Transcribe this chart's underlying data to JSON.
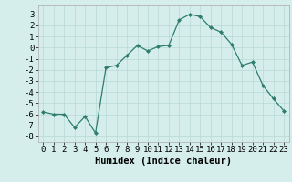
{
  "xlabel": "Humidex (Indice chaleur)",
  "ylabel": "",
  "x": [
    0,
    1,
    2,
    3,
    4,
    5,
    6,
    7,
    8,
    9,
    10,
    11,
    12,
    13,
    14,
    15,
    16,
    17,
    18,
    19,
    20,
    21,
    22,
    23
  ],
  "y": [
    -5.8,
    -6.0,
    -6.0,
    -7.2,
    -6.2,
    -7.7,
    -1.8,
    -1.6,
    -0.7,
    0.2,
    -0.3,
    0.1,
    0.2,
    2.5,
    3.0,
    2.8,
    1.8,
    1.4,
    0.3,
    -1.6,
    -1.3,
    -3.4,
    -4.6,
    -5.7
  ],
  "line_color": "#2e7d6e",
  "marker": "D",
  "marker_size": 2.0,
  "bg_color": "#d5eeeb",
  "grid_color": "#b8d8d4",
  "ylim": [
    -8.5,
    3.8
  ],
  "yticks": [
    -8,
    -7,
    -6,
    -5,
    -4,
    -3,
    -2,
    -1,
    0,
    1,
    2,
    3
  ],
  "xlim": [
    -0.5,
    23.5
  ],
  "xticks": [
    0,
    1,
    2,
    3,
    4,
    5,
    6,
    7,
    8,
    9,
    10,
    11,
    12,
    13,
    14,
    15,
    16,
    17,
    18,
    19,
    20,
    21,
    22,
    23
  ],
  "tick_fontsize": 6.5,
  "label_fontsize": 7.5,
  "line_width": 0.9
}
